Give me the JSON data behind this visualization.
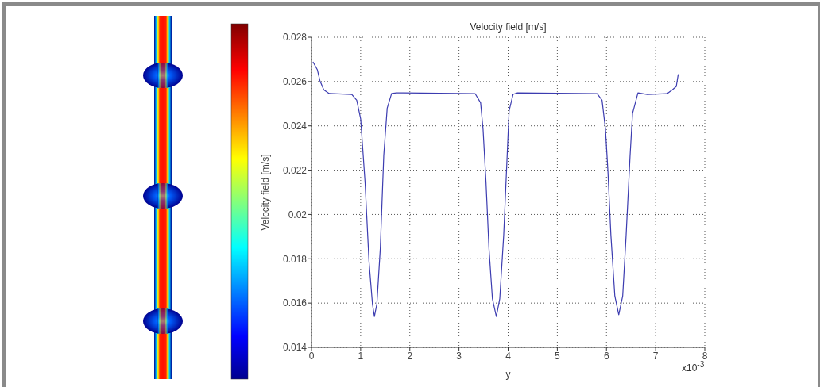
{
  "chart_data": {
    "type": "line",
    "title": "Velocity field [m/s]",
    "xlabel": "y",
    "ylabel": "Velocity field [m/s]",
    "annotations": [
      "x10$^{-3}$"
    ],
    "series": [
      {
        "color": "#3c3cb0",
        "x": [
          0.03,
          0.12,
          0.17,
          0.25,
          0.36,
          0.82,
          0.92,
          1.0,
          1.09,
          1.17,
          1.24,
          1.28,
          1.33,
          1.4,
          1.47,
          1.54,
          1.63,
          1.73,
          3.33,
          3.44,
          3.49,
          3.55,
          3.61,
          3.68,
          3.76,
          3.83,
          3.91,
          3.98,
          4.02,
          4.1,
          4.19,
          5.81,
          5.91,
          5.98,
          6.03,
          6.09,
          6.17,
          6.25,
          6.33,
          6.4,
          6.48,
          6.53,
          6.64,
          6.83,
          7.23,
          7.34,
          7.42,
          7.46
        ],
        "values": [
          0.02689,
          0.02653,
          0.02605,
          0.02563,
          0.02546,
          0.02542,
          0.02516,
          0.02432,
          0.02145,
          0.01787,
          0.01596,
          0.01539,
          0.01596,
          0.01847,
          0.02265,
          0.0248,
          0.02546,
          0.02549,
          0.02545,
          0.02504,
          0.02384,
          0.02145,
          0.01847,
          0.0162,
          0.01539,
          0.0162,
          0.01907,
          0.02265,
          0.02468,
          0.02542,
          0.02549,
          0.02545,
          0.02516,
          0.02384,
          0.02193,
          0.01907,
          0.01632,
          0.01547,
          0.01632,
          0.01907,
          0.02265,
          0.02456,
          0.02549,
          0.02542,
          0.02545,
          0.02563,
          0.02578,
          0.02633
        ]
      }
    ],
    "xlim": [
      0,
      8
    ],
    "xticks": [
      0,
      1,
      2,
      3,
      4,
      5,
      6,
      7,
      8
    ],
    "ylim": [
      0.014,
      0.028
    ],
    "yticks": [
      0.014,
      0.016,
      0.018,
      0.02,
      0.022,
      0.024,
      0.026,
      0.028
    ],
    "grid": true,
    "legend": false,
    "marker": "none",
    "line_style": "solid"
  }
}
